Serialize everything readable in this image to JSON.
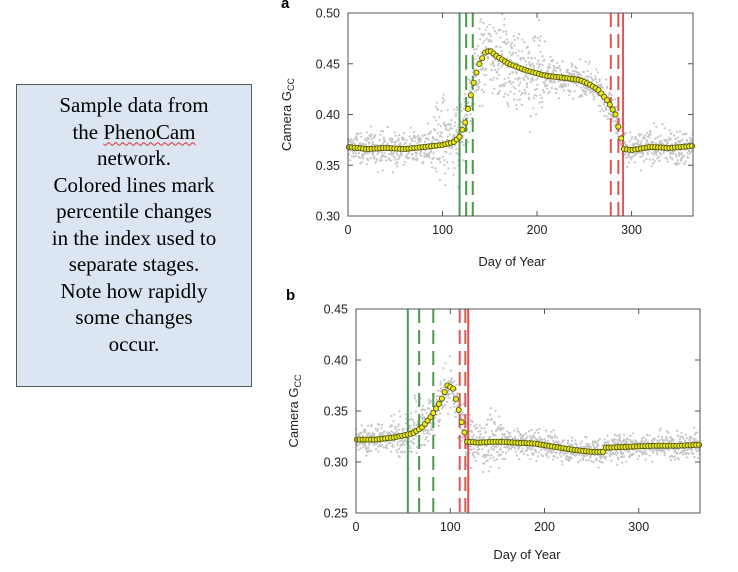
{
  "note": {
    "lines": [
      {
        "text": "Sample data from"
      },
      {
        "text": "the ",
        "link": "PhenoCam"
      },
      {
        "text": "network."
      },
      {
        "text": "Colored lines mark"
      },
      {
        "text": "percentile changes"
      },
      {
        "text": "in the index used to"
      },
      {
        "text": "separate stages."
      },
      {
        "text": "Note how rapidly"
      },
      {
        "text": "some changes"
      },
      {
        "text": "occur."
      }
    ]
  },
  "colors": {
    "raw": "#c6c6c6",
    "smooth_fill": "#e8e820",
    "smooth_edge": "#4a4a00",
    "green": "#4c9a4c",
    "red": "#e05555"
  },
  "chart_data": [
    {
      "type": "scatter",
      "panel_label": "a",
      "xlabel": "Day of Year",
      "ylabel_main": "Camera G",
      "ylabel_sub": "CC",
      "xlim": [
        0,
        365
      ],
      "ylim": [
        0.3,
        0.5
      ],
      "xticks": [
        0,
        100,
        200,
        300
      ],
      "yticks": [
        0.3,
        0.35,
        0.4,
        0.45,
        0.5
      ],
      "ytick_labels": [
        "0.30",
        "0.35",
        "0.40",
        "0.45",
        "0.50"
      ],
      "curve": [
        [
          0,
          0.368
        ],
        [
          20,
          0.366
        ],
        [
          40,
          0.367
        ],
        [
          60,
          0.366
        ],
        [
          80,
          0.368
        ],
        [
          100,
          0.37
        ],
        [
          112,
          0.373
        ],
        [
          118,
          0.378
        ],
        [
          124,
          0.392
        ],
        [
          128,
          0.41
        ],
        [
          132,
          0.428
        ],
        [
          138,
          0.448
        ],
        [
          145,
          0.461
        ],
        [
          150,
          0.463
        ],
        [
          158,
          0.457
        ],
        [
          170,
          0.45
        ],
        [
          190,
          0.443
        ],
        [
          210,
          0.438
        ],
        [
          230,
          0.436
        ],
        [
          245,
          0.434
        ],
        [
          255,
          0.43
        ],
        [
          265,
          0.424
        ],
        [
          275,
          0.413
        ],
        [
          283,
          0.4
        ],
        [
          288,
          0.38
        ],
        [
          292,
          0.366
        ],
        [
          300,
          0.365
        ],
        [
          320,
          0.368
        ],
        [
          340,
          0.367
        ],
        [
          365,
          0.369
        ]
      ],
      "noise": {
        "base": 0.008,
        "peak": 0.02
      },
      "vlines": [
        {
          "x": 118,
          "color": "green",
          "style": "solid"
        },
        {
          "x": 125,
          "color": "green",
          "style": "dashed"
        },
        {
          "x": 132,
          "color": "green",
          "style": "dashed"
        },
        {
          "x": 278,
          "color": "red",
          "style": "dashed"
        },
        {
          "x": 286,
          "color": "red",
          "style": "dashed"
        },
        {
          "x": 291,
          "color": "red",
          "style": "solid"
        }
      ]
    },
    {
      "type": "scatter",
      "panel_label": "b",
      "xlabel": "Day of Year",
      "ylabel_main": "Camera G",
      "ylabel_sub": "CC",
      "xlim": [
        0,
        365
      ],
      "ylim": [
        0.25,
        0.45
      ],
      "xticks": [
        0,
        100,
        200,
        300
      ],
      "yticks": [
        0.25,
        0.3,
        0.35,
        0.4,
        0.45
      ],
      "ytick_labels": [
        "0.25",
        "0.30",
        "0.35",
        "0.40",
        "0.45"
      ],
      "curve": [
        [
          0,
          0.322
        ],
        [
          20,
          0.322
        ],
        [
          40,
          0.324
        ],
        [
          60,
          0.328
        ],
        [
          70,
          0.334
        ],
        [
          80,
          0.345
        ],
        [
          90,
          0.36
        ],
        [
          97,
          0.375
        ],
        [
          103,
          0.372
        ],
        [
          108,
          0.355
        ],
        [
          113,
          0.335
        ],
        [
          118,
          0.32
        ],
        [
          130,
          0.319
        ],
        [
          150,
          0.32
        ],
        [
          170,
          0.319
        ],
        [
          190,
          0.318
        ],
        [
          210,
          0.315
        ],
        [
          230,
          0.312
        ],
        [
          250,
          0.31
        ],
        [
          262,
          0.31
        ],
        [
          265,
          0.314
        ],
        [
          290,
          0.315
        ],
        [
          320,
          0.316
        ],
        [
          345,
          0.316
        ],
        [
          365,
          0.317
        ]
      ],
      "noise": {
        "base": 0.006,
        "peak": 0.012
      },
      "vlines": [
        {
          "x": 55,
          "color": "green",
          "style": "solid"
        },
        {
          "x": 67,
          "color": "green",
          "style": "dashed"
        },
        {
          "x": 82,
          "color": "green",
          "style": "dashed"
        },
        {
          "x": 110,
          "color": "red",
          "style": "dashed"
        },
        {
          "x": 116,
          "color": "red",
          "style": "dashed"
        },
        {
          "x": 119,
          "color": "red",
          "style": "solid"
        }
      ]
    }
  ]
}
